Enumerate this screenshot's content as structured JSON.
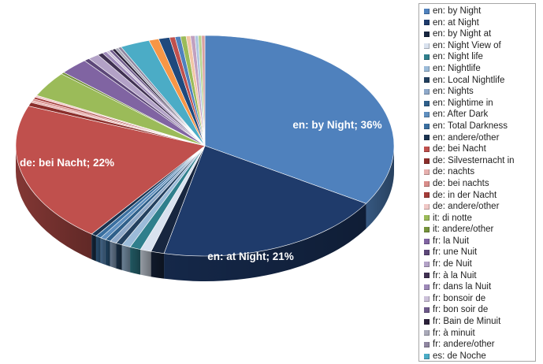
{
  "chart_data": {
    "type": "pie",
    "title": "",
    "slices": [
      {
        "label": "en: by Night",
        "value": 36,
        "color": "#4f81bd"
      },
      {
        "label": "en: at Night",
        "value": 21,
        "color": "#1f3b6b"
      },
      {
        "label": "en: by Night at",
        "value": 1.2,
        "color": "#17263f"
      },
      {
        "label": "en: Night View of",
        "value": 1.0,
        "color": "#d9e2ef"
      },
      {
        "label": "en: Night life",
        "value": 1.0,
        "color": "#2f7f8c"
      },
      {
        "label": "en: Nightlife",
        "value": 0.8,
        "color": "#9bbbd9"
      },
      {
        "label": "en: Local Nightlife",
        "value": 0.6,
        "color": "#23405f"
      },
      {
        "label": "en: Nights",
        "value": 0.6,
        "color": "#8fa9c9"
      },
      {
        "label": "en: Nightime in",
        "value": 0.5,
        "color": "#2e5f8a"
      },
      {
        "label": "en: After Dark",
        "value": 0.5,
        "color": "#5f8fbf"
      },
      {
        "label": "en: Total Darkness",
        "value": 0.5,
        "color": "#3a6fa0"
      },
      {
        "label": "en: andere/other",
        "value": 0.5,
        "color": "#1b3350"
      },
      {
        "label": "de: bei Nacht",
        "value": 22,
        "color": "#c0504d"
      },
      {
        "label": "de: Silvesternacht in",
        "value": 0.6,
        "color": "#8b2e2b"
      },
      {
        "label": "de: nachts",
        "value": 0.3,
        "color": "#e6b0ae"
      },
      {
        "label": "de: bei nachts",
        "value": 0.3,
        "color": "#d98d8a"
      },
      {
        "label": "de: in der Nacht",
        "value": 0.3,
        "color": "#a33c39"
      },
      {
        "label": "de: andere/other",
        "value": 0.3,
        "color": "#f0c8c6"
      },
      {
        "label": "it: di notte",
        "value": 4.0,
        "color": "#9bbb59"
      },
      {
        "label": "it: andere/other",
        "value": 0.3,
        "color": "#76933c"
      },
      {
        "label": "fr: la Nuit",
        "value": 2.6,
        "color": "#8064a2"
      },
      {
        "label": "fr: une Nuit",
        "value": 0.5,
        "color": "#5c4778"
      },
      {
        "label": "fr: de Nuit",
        "value": 1.0,
        "color": "#b3a2c7"
      },
      {
        "label": "fr: à la Nuit",
        "value": 0.5,
        "color": "#403152"
      },
      {
        "label": "fr: dans la Nuit",
        "value": 0.4,
        "color": "#9d88b8"
      },
      {
        "label": "fr: bonsoir de",
        "value": 0.3,
        "color": "#ccc1da"
      },
      {
        "label": "fr: bon soir de",
        "value": 0.3,
        "color": "#6e5a8a"
      },
      {
        "label": "fr: Bain de Minuit",
        "value": 0.3,
        "color": "#2b213a"
      },
      {
        "label": "fr: à minuit",
        "value": 0.3,
        "color": "#a9a9b8"
      },
      {
        "label": "fr: andere/other",
        "value": 0.3,
        "color": "#8f86a0"
      },
      {
        "label": "es: de Noche",
        "value": 2.7,
        "color": "#4bacc6"
      }
    ],
    "extra_slices": [
      {
        "value": 0.9,
        "color": "#f79646"
      },
      {
        "value": 1.0,
        "color": "#1f497d"
      },
      {
        "value": 0.5,
        "color": "#c0504d"
      },
      {
        "value": 0.5,
        "color": "#4f81bd"
      },
      {
        "value": 0.5,
        "color": "#9bbb59"
      },
      {
        "value": 0.4,
        "color": "#f2c5a5"
      },
      {
        "value": 0.4,
        "color": "#c0a0c0"
      },
      {
        "value": 0.3,
        "color": "#aec6e0"
      },
      {
        "value": 0.3,
        "color": "#b7d38f"
      },
      {
        "value": 0.3,
        "color": "#d9a0a0"
      }
    ],
    "data_labels": [
      {
        "slice": "en: by Night",
        "text": "en: by Night; 36%"
      },
      {
        "slice": "en: at Night",
        "text": "en: at Night; 21%"
      },
      {
        "slice": "de: bei Nacht",
        "text": "de: bei Nacht; 22%"
      }
    ],
    "legend": {
      "position": "right"
    }
  }
}
